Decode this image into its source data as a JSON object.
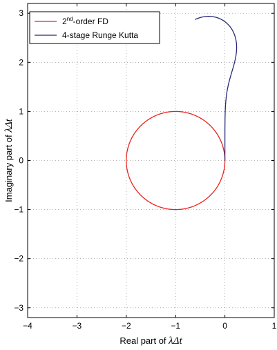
{
  "chart_data": {
    "type": "line",
    "xlabel_text": "Real part of ",
    "xlabel_math": "λΔt",
    "ylabel_text": "Imaginary part of ",
    "ylabel_math": "λΔt",
    "xlim": [
      -4,
      1
    ],
    "ylim": [
      -3.2,
      3.2
    ],
    "xticks": [
      -4,
      -3,
      -2,
      -1,
      0,
      1
    ],
    "yticks": [
      -3,
      -2,
      -1,
      0,
      1,
      2,
      3
    ],
    "grid": true,
    "legend_position": "top-left",
    "series": [
      {
        "name": "2nd-order FD",
        "name_base": "2",
        "name_sup": "nd",
        "name_rest": "-order FD",
        "color": "#e8221c",
        "shape": "circle",
        "center": [
          -1,
          0
        ],
        "radius": 1
      },
      {
        "name": "4-stage Runge Kutta",
        "color": "#27277a",
        "shape": "rk4-stability-boundary"
      }
    ]
  }
}
